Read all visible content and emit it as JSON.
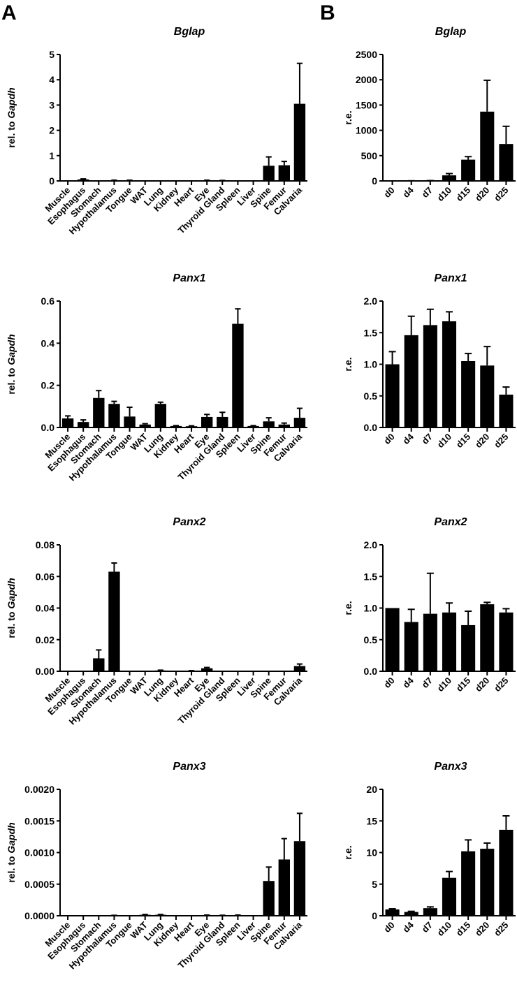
{
  "panel_labels": [
    "A",
    "B"
  ],
  "chart_data": [
    {
      "type": "bar",
      "panel": "A",
      "title": "Bglap",
      "ylabel_prefix": "rel. to ",
      "ylabel_italic": "Gapdh",
      "ylim": [
        0,
        5
      ],
      "y_tick_labels": [
        "0",
        "1",
        "2",
        "3",
        "4",
        "5"
      ],
      "categories": [
        "Muscle",
        "Esophagus",
        "Stomach",
        "Hypothalamus",
        "Tongue",
        "WAT",
        "Lung",
        "Kidney",
        "Heart",
        "Eye",
        "Thyroid Gland",
        "Spleen",
        "Liver",
        "Spine",
        "Femur",
        "Calvaria"
      ],
      "values": [
        0.0,
        0.06,
        0.0,
        0.02,
        0.02,
        0.0,
        0.0,
        0.0,
        0.0,
        0.02,
        0.01,
        0.0,
        0.0,
        0.6,
        0.62,
        3.05
      ],
      "errors": [
        0,
        0.02,
        0,
        0.01,
        0.01,
        0,
        0,
        0,
        0,
        0.01,
        0.01,
        0,
        0,
        0.35,
        0.15,
        1.6
      ]
    },
    {
      "type": "bar",
      "panel": "A",
      "title": "Panx1",
      "ylabel_prefix": "rel. to ",
      "ylabel_italic": "Gapdh",
      "ylim": [
        0,
        0.6
      ],
      "y_tick_labels": [
        "0.0",
        "0.2",
        "0.4",
        "0.6"
      ],
      "categories": [
        "Muscle",
        "Esophagus",
        "Stomach",
        "Hypothalamus",
        "Tongue",
        "WAT",
        "Lung",
        "Kidney",
        "Heart",
        "Eye",
        "Thyroid Gland",
        "Spleen",
        "Liver",
        "Spine",
        "Femur",
        "Calvaria"
      ],
      "values": [
        0.043,
        0.026,
        0.14,
        0.112,
        0.052,
        0.014,
        0.112,
        0.007,
        0.006,
        0.05,
        0.05,
        0.492,
        0.007,
        0.029,
        0.014,
        0.046
      ],
      "errors": [
        0.012,
        0.01,
        0.035,
        0.012,
        0.044,
        0.004,
        0.008,
        0.002,
        0.002,
        0.012,
        0.022,
        0.071,
        0.002,
        0.017,
        0.007,
        0.045
      ]
    },
    {
      "type": "bar",
      "panel": "A",
      "title": "Panx2",
      "ylabel_prefix": "rel. to ",
      "ylabel_italic": "Gapdh",
      "ylim": [
        0,
        0.08
      ],
      "y_tick_labels": [
        "0.00",
        "0.02",
        "0.04",
        "0.06",
        "0.08"
      ],
      "categories": [
        "Muscle",
        "Esophagus",
        "Stomach",
        "Hypothalamus",
        "Tongue",
        "WAT",
        "Lung",
        "Kidney",
        "Heart",
        "Eye",
        "Thyroid Gland",
        "Spleen",
        "Liver",
        "Spine",
        "Femur",
        "Calvaria"
      ],
      "values": [
        0,
        0,
        0.0082,
        0.063,
        0,
        0,
        0.0005,
        0,
        0.0003,
        0.0019,
        0,
        0,
        0,
        0,
        0,
        0.0033
      ],
      "errors": [
        0,
        0,
        0.0053,
        0.0055,
        0,
        0,
        0.0002,
        0,
        0.0001,
        0.0005,
        0,
        0,
        0,
        0,
        0,
        0.0013
      ]
    },
    {
      "type": "bar",
      "panel": "A",
      "title": "Panx3",
      "ylabel_prefix": "rel. to ",
      "ylabel_italic": "Gapdh",
      "ylim": [
        0,
        0.002
      ],
      "y_tick_labels": [
        "0.0000",
        "0.0005",
        "0.0010",
        "0.0015",
        "0.0020"
      ],
      "categories": [
        "Muscle",
        "Esophagus",
        "Stomach",
        "Hypothalamus",
        "Tongue",
        "WAT",
        "Lung",
        "Kidney",
        "Heart",
        "Eye",
        "Thyroid Gland",
        "Spleen",
        "Liver",
        "Spine",
        "Femur",
        "Calvaria"
      ],
      "values": [
        0,
        0,
        0,
        5e-06,
        0,
        1.5e-05,
        1.5e-05,
        0,
        0,
        8e-06,
        6e-06,
        8e-06,
        0,
        0.00055,
        0.00089,
        0.00118
      ],
      "errors": [
        0,
        0,
        0,
        2e-06,
        0,
        5e-06,
        5e-06,
        0,
        0,
        3e-06,
        2e-06,
        3e-06,
        0,
        0.00022,
        0.00033,
        0.00044
      ]
    },
    {
      "type": "bar",
      "panel": "B",
      "title": "Bglap",
      "ylabel_prefix": "r.e.",
      "ylabel_italic": "",
      "ylim": [
        0,
        2500
      ],
      "y_tick_labels": [
        "0",
        "500",
        "1000",
        "1500",
        "2000",
        "2500"
      ],
      "categories": [
        "d0",
        "d4",
        "d7",
        "d10",
        "d15",
        "d20",
        "d25"
      ],
      "values": [
        1,
        2,
        5,
        110,
        420,
        1370,
        730
      ],
      "errors": [
        0,
        1,
        2,
        35,
        60,
        620,
        350
      ]
    },
    {
      "type": "bar",
      "panel": "B",
      "title": "Panx1",
      "ylabel_prefix": "r.e.",
      "ylabel_italic": "",
      "ylim": [
        0,
        2.0
      ],
      "y_tick_labels": [
        "0.0",
        "0.5",
        "1.0",
        "1.5",
        "2.0"
      ],
      "categories": [
        "d0",
        "d4",
        "d7",
        "d10",
        "d15",
        "d20",
        "d25"
      ],
      "values": [
        1.0,
        1.46,
        1.62,
        1.68,
        1.05,
        0.98,
        0.52
      ],
      "errors": [
        0.2,
        0.3,
        0.25,
        0.15,
        0.12,
        0.3,
        0.12
      ]
    },
    {
      "type": "bar",
      "panel": "B",
      "title": "Panx2",
      "ylabel_prefix": "r.e.",
      "ylabel_italic": "",
      "ylim": [
        0,
        2.0
      ],
      "y_tick_labels": [
        "0.0",
        "0.5",
        "1.0",
        "1.5",
        "2.0"
      ],
      "categories": [
        "d0",
        "d4",
        "d7",
        "d10",
        "d15",
        "d20",
        "d25"
      ],
      "values": [
        1.0,
        0.78,
        0.91,
        0.93,
        0.73,
        1.06,
        0.93
      ],
      "errors": [
        0,
        0.2,
        0.64,
        0.15,
        0.22,
        0.03,
        0.06
      ]
    },
    {
      "type": "bar",
      "panel": "B",
      "title": "Panx3",
      "ylabel_prefix": "r.e.",
      "ylabel_italic": "",
      "ylim": [
        0,
        20
      ],
      "y_tick_labels": [
        "0",
        "5",
        "10",
        "15",
        "20"
      ],
      "categories": [
        "d0",
        "d4",
        "d7",
        "d10",
        "d15",
        "d20",
        "d25"
      ],
      "values": [
        1.0,
        0.6,
        1.2,
        6.0,
        10.2,
        10.6,
        13.6
      ],
      "errors": [
        0.1,
        0.1,
        0.2,
        1.0,
        1.8,
        0.9,
        2.2
      ]
    }
  ]
}
